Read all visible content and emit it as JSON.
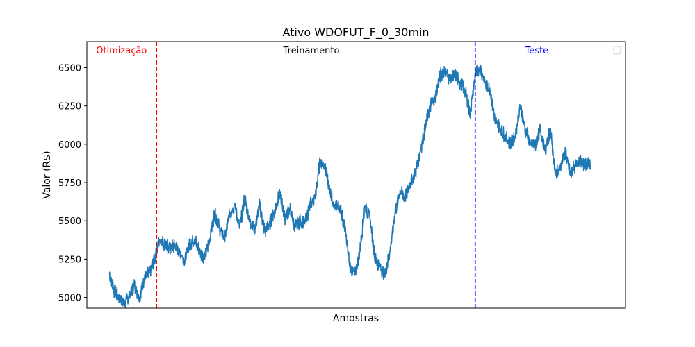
{
  "chart_data": {
    "type": "line",
    "title": "Ativo WDOFUT_F_0_30min",
    "xlabel": "Amostras",
    "ylabel": "Valor (R$)",
    "ylim": [
      4930,
      6670
    ],
    "xlim": [
      -0.045,
      1.03
    ],
    "yticks": [
      5000,
      5250,
      5500,
      5750,
      6000,
      6250,
      6500
    ],
    "xticks_visible": false,
    "grid": false,
    "legend": "top-right (empty)",
    "colors": {
      "series": "#1f77b4",
      "optimization_line": "#ff0000",
      "test_line": "#0000ff",
      "optimization_text": "#ff0000",
      "test_text": "#0000ff",
      "training_text": "#000000"
    },
    "series": [
      {
        "x": [
          0.0,
          0.01,
          0.02,
          0.03,
          0.04,
          0.05,
          0.06,
          0.07,
          0.08,
          0.09,
          0.1,
          0.11,
          0.12,
          0.13,
          0.14,
          0.15,
          0.16,
          0.17,
          0.18,
          0.19,
          0.2,
          0.21,
          0.22,
          0.23,
          0.24,
          0.25,
          0.26,
          0.27,
          0.28,
          0.29,
          0.3,
          0.31,
          0.32,
          0.33,
          0.34,
          0.35,
          0.36,
          0.37,
          0.38,
          0.39,
          0.4,
          0.41,
          0.42,
          0.43,
          0.44,
          0.45,
          0.46,
          0.47,
          0.48,
          0.49,
          0.5,
          0.51,
          0.52,
          0.53,
          0.54,
          0.55,
          0.56,
          0.57,
          0.58,
          0.59,
          0.6,
          0.61,
          0.62,
          0.63,
          0.64,
          0.65,
          0.66,
          0.67,
          0.68,
          0.69,
          0.7,
          0.71,
          0.72,
          0.73,
          0.74,
          0.75,
          0.76,
          0.77,
          0.78,
          0.79,
          0.8,
          0.81,
          0.82,
          0.83,
          0.84,
          0.85,
          0.86,
          0.87,
          0.88,
          0.89,
          0.9,
          0.91,
          0.92,
          0.93,
          0.94,
          0.95,
          0.96,
          0.97,
          0.98,
          0.99,
          1.0
        ],
        "values": [
          5150,
          5040,
          5000,
          4960,
          5010,
          5080,
          5000,
          5130,
          5160,
          5250,
          5380,
          5350,
          5320,
          5340,
          5300,
          5240,
          5350,
          5380,
          5300,
          5260,
          5380,
          5550,
          5450,
          5380,
          5550,
          5600,
          5450,
          5650,
          5500,
          5450,
          5600,
          5430,
          5480,
          5570,
          5680,
          5520,
          5580,
          5450,
          5500,
          5480,
          5600,
          5650,
          5880,
          5850,
          5700,
          5580,
          5600,
          5450,
          5200,
          5150,
          5300,
          5600,
          5520,
          5250,
          5200,
          5150,
          5300,
          5550,
          5700,
          5650,
          5750,
          5800,
          5950,
          6100,
          6250,
          6300,
          6450,
          6480,
          6420,
          6450,
          6400,
          6350,
          6200,
          6450,
          6500,
          6400,
          6350,
          6150,
          6100,
          6050,
          6000,
          6050,
          6250,
          6100,
          6000,
          6000,
          6100,
          5950,
          6100,
          5800,
          5850,
          5950,
          5800,
          5870,
          5880,
          5870,
          5870,
          5870,
          5870,
          5870,
          5870
        ]
      }
    ],
    "vlines": [
      {
        "x": 0.094,
        "style": "dashed",
        "color": "#ff0000"
      },
      {
        "x": 0.73,
        "style": "dashed",
        "color": "#0000ff"
      }
    ],
    "annotations": [
      {
        "text": "Otimização",
        "x": 0.024,
        "color": "#ff0000"
      },
      {
        "text": "Treinamento",
        "x": 0.403,
        "color": "#000000"
      },
      {
        "text": "Teste",
        "x": 0.853,
        "color": "#0000ff"
      }
    ]
  }
}
